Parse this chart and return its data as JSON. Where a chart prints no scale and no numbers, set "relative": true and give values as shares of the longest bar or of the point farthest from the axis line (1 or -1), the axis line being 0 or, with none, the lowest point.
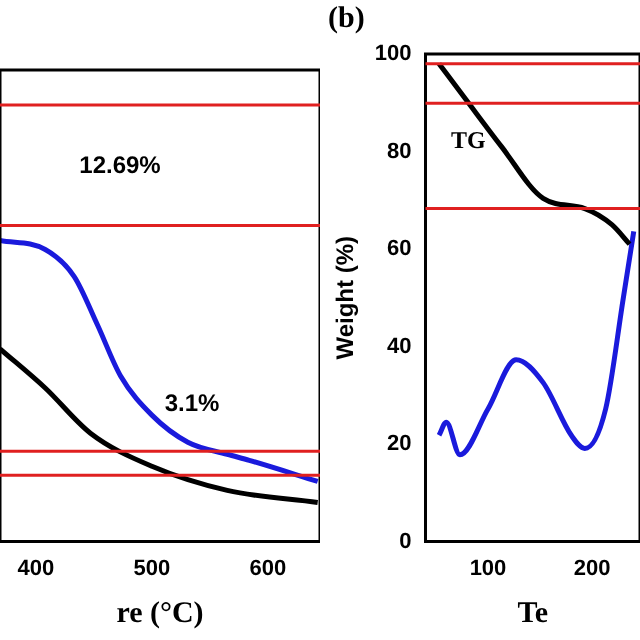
{
  "chart_data": [
    {
      "type": "line",
      "relative": true,
      "xlabel": "re (°C)",
      "xlim": [
        369,
        645
      ],
      "xticks": [
        400,
        500,
        600
      ],
      "grid": false,
      "legend": false,
      "marker": "none",
      "series": [
        {
          "color": "#1a1adc",
          "x": [
            369,
            408,
            433,
            453,
            473,
            500,
            531,
            565,
            584,
            643
          ],
          "values": [
            1.0,
            0.97,
            0.88,
            0.72,
            0.55,
            0.42,
            0.33,
            0.29,
            0.27,
            0.2
          ]
        },
        {
          "color": "#000000",
          "x": [
            369,
            408,
            447,
            500,
            565,
            643
          ],
          "values": [
            0.64,
            0.51,
            0.36,
            0.25,
            0.17,
            0.13
          ]
        }
      ],
      "ref_lines": [
        {
          "axis": "y",
          "value": 1.45,
          "color": "#e02020"
        },
        {
          "axis": "y",
          "value": 1.05,
          "color": "#e02020"
        },
        {
          "axis": "y",
          "value": 0.3,
          "color": "#e02020"
        },
        {
          "axis": "y",
          "value": 0.22,
          "color": "#e02020"
        }
      ],
      "annotations": [
        "12.69%",
        "3.1%"
      ]
    },
    {
      "type": "line",
      "ylabel": "Weight (%)",
      "xlabel": "Te",
      "xlim": [
        40,
        246
      ],
      "xticks": [
        100,
        200
      ],
      "ylim": [
        0,
        100
      ],
      "yticks": [
        0,
        20,
        40,
        60,
        80,
        100
      ],
      "grid": false,
      "legend": false,
      "marker": "none",
      "series": [
        {
          "color": "#000000",
          "x": [
            53,
            79,
            113,
            153,
            193,
            219,
            236
          ],
          "values": [
            98,
            90.6,
            81,
            70.4,
            68.3,
            65,
            61
          ]
        },
        {
          "color": "#1a1adc",
          "x": [
            53,
            60,
            73,
            100,
            127,
            153,
            180,
            193,
            213,
            230,
            240
          ],
          "values": [
            21.8,
            24.5,
            17.8,
            27.2,
            37.3,
            32.6,
            21.8,
            19.1,
            27.2,
            50,
            63.6
          ]
        }
      ],
      "ref_lines": [
        {
          "axis": "y",
          "value": 98,
          "color": "#e02020"
        },
        {
          "axis": "y",
          "value": 89.9,
          "color": "#e02020"
        },
        {
          "axis": "y",
          "value": 68.3,
          "color": "#e02020"
        }
      ],
      "annotations": [
        "(b)",
        "TG"
      ]
    }
  ]
}
